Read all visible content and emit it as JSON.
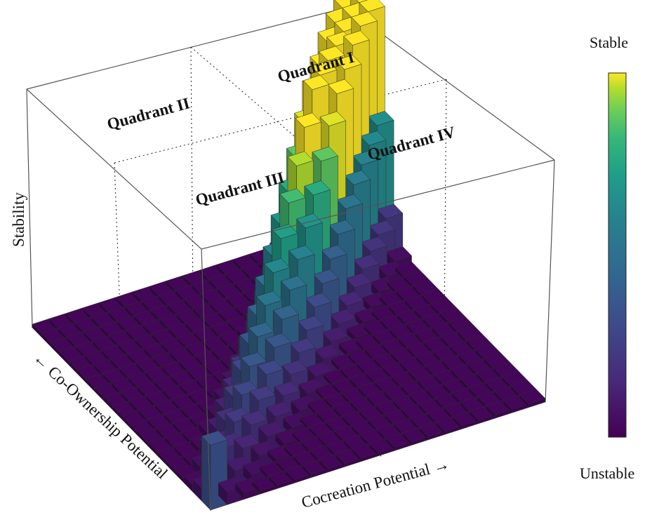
{
  "chart_data": {
    "type": "3d-bar-surface",
    "title": "",
    "xlabel": "Cocreation Potential →",
    "ylabel": "← Co-Ownership Potential",
    "zlabel": "Stability",
    "quadrants": [
      "Quadrant I",
      "Quadrant II",
      "Quadrant III",
      "Quadrant IV"
    ],
    "colorbar": {
      "top_label": "Stable",
      "bottom_label": "Unstable",
      "colormap": "viridis"
    },
    "grid": "dotted quadrant dividers",
    "n_x": 20,
    "n_y": 20,
    "stability_grid_formula": "z is high where cocreation and co-ownership potentials are balanced, peaking as both increase"
  },
  "colors": {
    "low": "#3b2f7f",
    "mid": "#21908d",
    "high": "#fde725",
    "edge": "#2a2a2a",
    "box": "#555555"
  }
}
